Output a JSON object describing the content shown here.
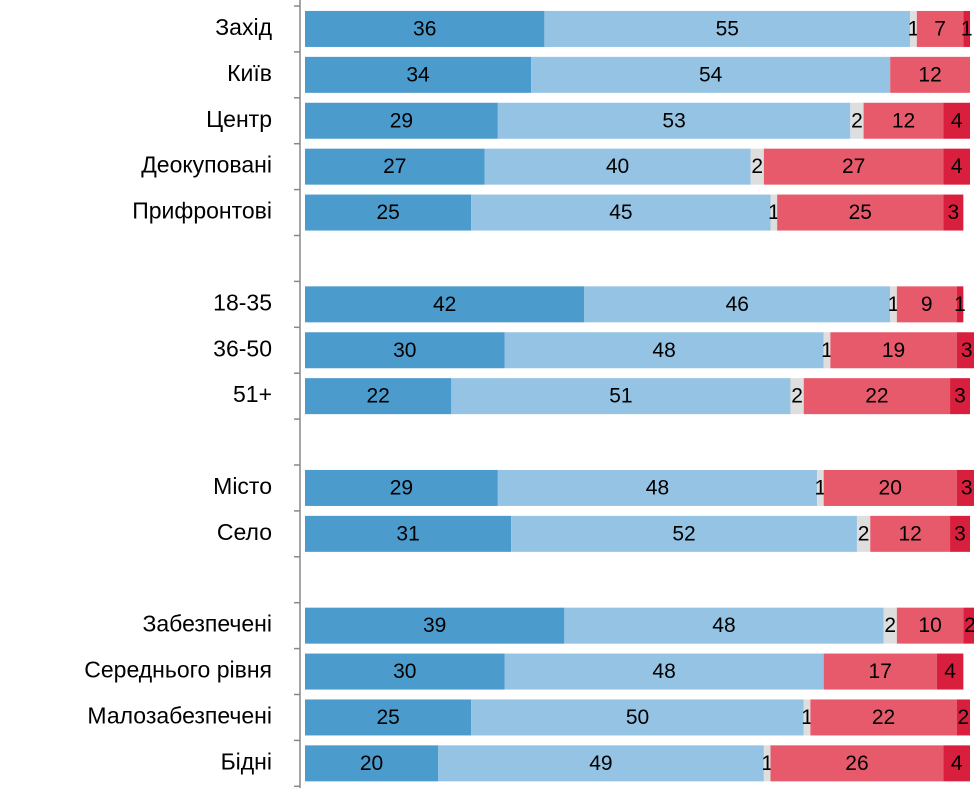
{
  "chart_data": {
    "type": "stacked-bar-horizontal",
    "categories": [
      "Захід",
      "Київ",
      "Центр",
      "Деокуповані",
      "Прифронтові",
      null,
      "18-35",
      "36-50",
      "51+",
      null,
      "Місто",
      "Село",
      null,
      "Забезпечені",
      "Середнього рівня",
      "Малозабезпечені",
      "Бідні"
    ],
    "series": [
      {
        "color": "#4b9bcc",
        "values": [
          36,
          34,
          29,
          27,
          25,
          null,
          42,
          30,
          22,
          null,
          29,
          31,
          null,
          39,
          30,
          25,
          20
        ]
      },
      {
        "color": "#94c3e3",
        "values": [
          55,
          54,
          53,
          40,
          45,
          null,
          46,
          48,
          51,
          null,
          48,
          52,
          null,
          48,
          48,
          50,
          49
        ]
      },
      {
        "color": "#dedede",
        "values": [
          1,
          null,
          2,
          2,
          1,
          null,
          1,
          1,
          2,
          null,
          1,
          2,
          null,
          2,
          null,
          1,
          1
        ]
      },
      {
        "color": "#e75a6b",
        "values": [
          7,
          12,
          12,
          27,
          25,
          null,
          9,
          19,
          22,
          null,
          20,
          12,
          null,
          10,
          17,
          22,
          26
        ]
      },
      {
        "color": "#d8203e",
        "values": [
          1,
          null,
          4,
          4,
          3,
          null,
          1,
          3,
          3,
          null,
          3,
          3,
          null,
          2,
          4,
          2,
          4
        ]
      }
    ],
    "xlim": [
      0,
      100
    ]
  }
}
